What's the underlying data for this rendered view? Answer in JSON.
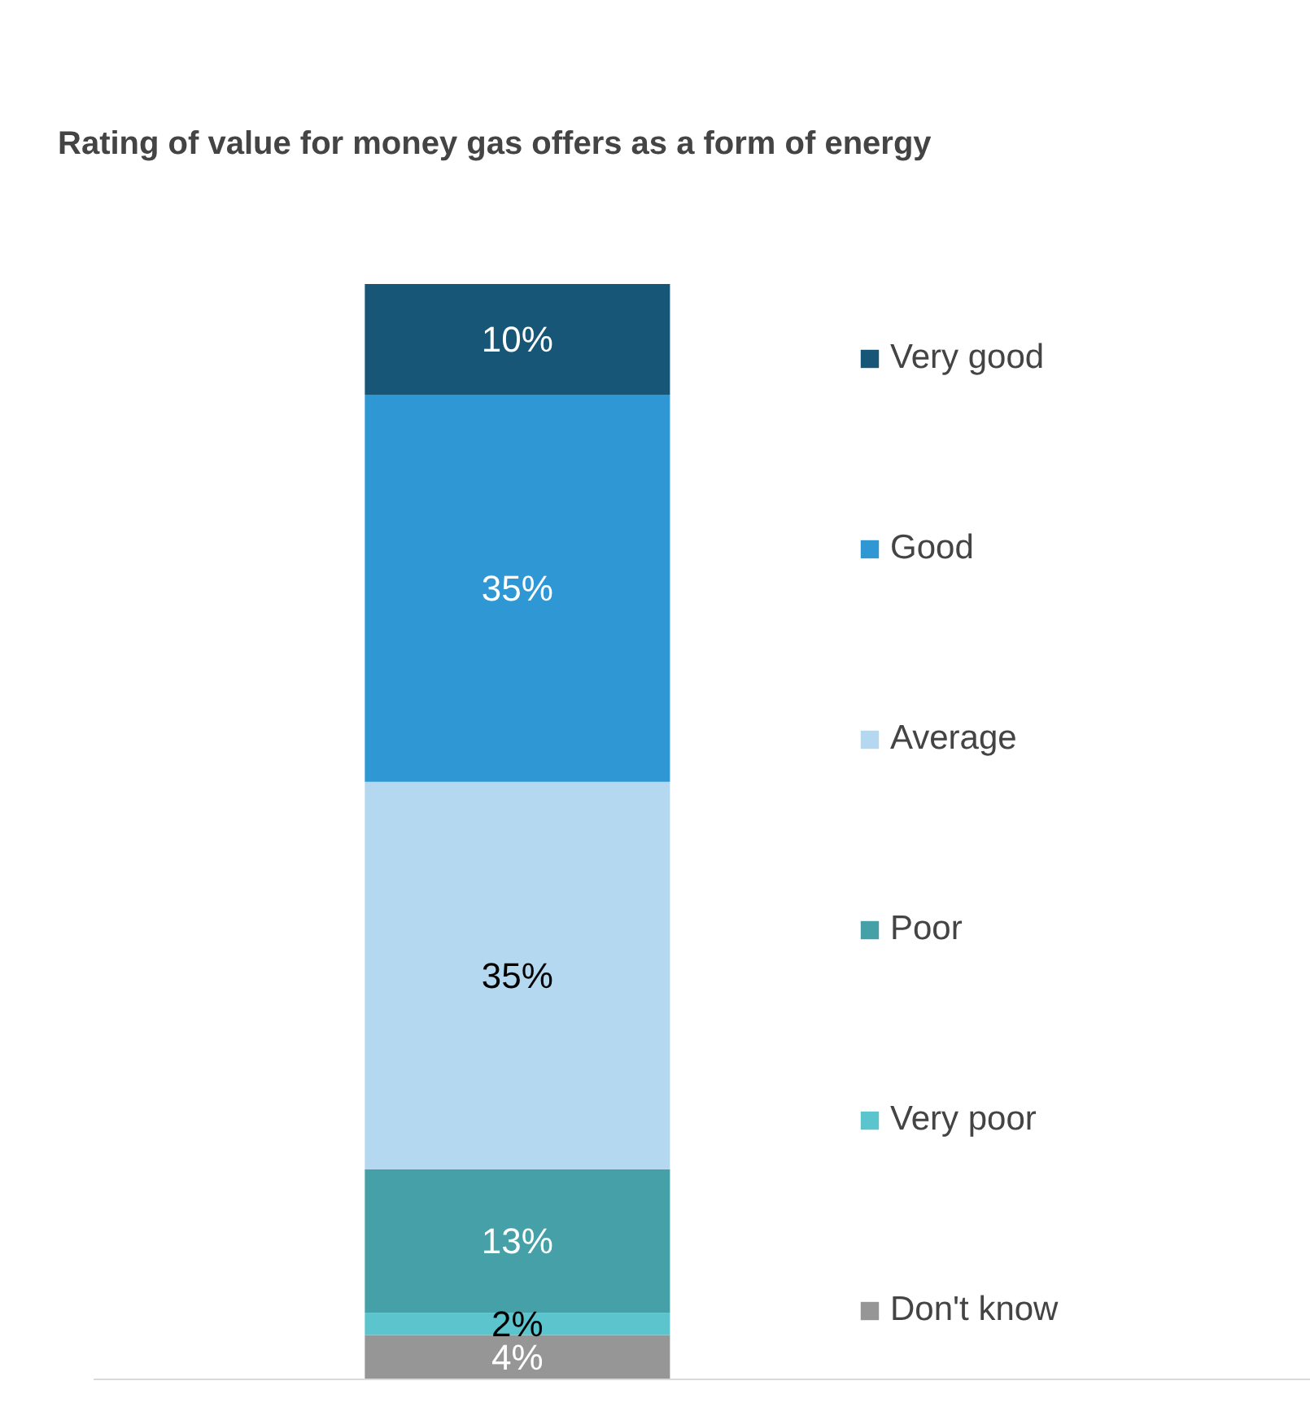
{
  "chart_data": {
    "type": "bar",
    "stacked": true,
    "title": "Rating of value for money gas offers as a form of energy",
    "categories": [
      null
    ],
    "series": [
      {
        "name": "Don't know",
        "color": "#969696",
        "values": [
          4
        ],
        "value_labels": [
          "4%"
        ]
      },
      {
        "name": "Very poor",
        "color": "#5bc4cc",
        "values": [
          2
        ],
        "value_labels": [
          "2%"
        ]
      },
      {
        "name": "Poor",
        "color": "#46a0a7",
        "values": [
          13
        ],
        "value_labels": [
          "13%"
        ]
      },
      {
        "name": "Average",
        "color": "#b3d8f0",
        "values": [
          35
        ],
        "value_labels": [
          "35%"
        ]
      },
      {
        "name": "Good",
        "color": "#2e97d4",
        "values": [
          35
        ],
        "value_labels": [
          "35%"
        ]
      },
      {
        "name": "Very good",
        "color": "#175677",
        "values": [
          10
        ],
        "value_labels": [
          "10%"
        ]
      }
    ],
    "legend": "right",
    "grid": false
  }
}
